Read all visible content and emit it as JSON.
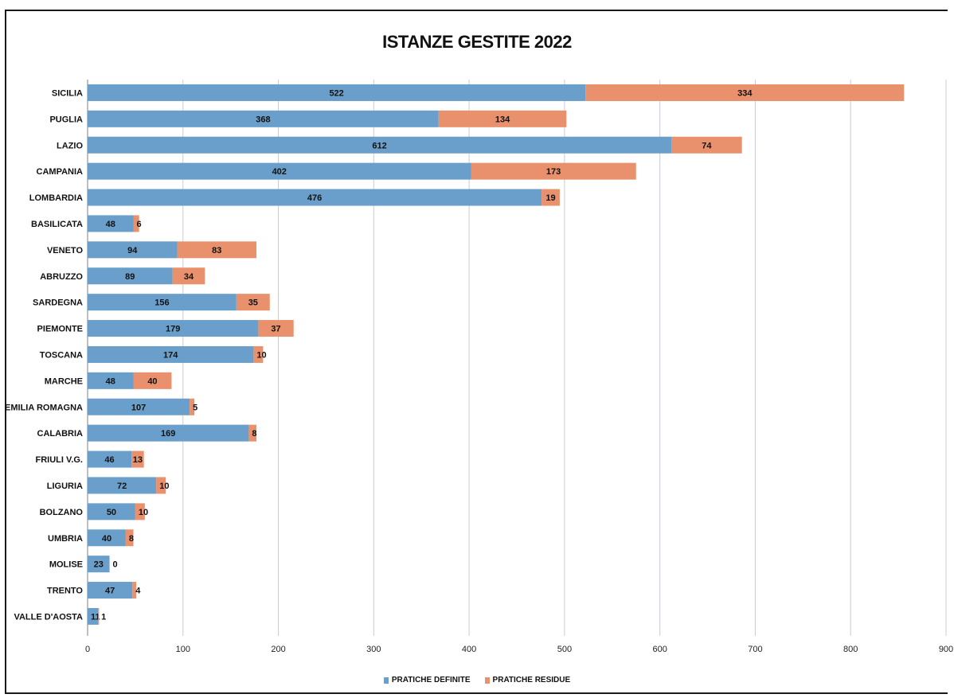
{
  "chart_data": {
    "type": "bar",
    "orientation": "horizontal",
    "stacked": true,
    "title": "ISTANZE GESTITE 2022",
    "categories": [
      "SICILIA",
      "PUGLIA",
      "LAZIO",
      "CAMPANIA",
      "LOMBARDIA",
      "BASILICATA",
      "VENETO",
      "ABRUZZO",
      "SARDEGNA",
      "PIEMONTE",
      "TOSCANA",
      "MARCHE",
      "EMILIA ROMAGNA",
      "CALABRIA",
      "FRIULI V.G.",
      "LIGURIA",
      "BOLZANO",
      "UMBRIA",
      "MOLISE",
      "TRENTO",
      "VALLE D'AOSTA"
    ],
    "series": [
      {
        "name": "PRATICHE DEFINITE",
        "color": "#6a9fcb",
        "values": [
          522,
          368,
          612,
          402,
          476,
          48,
          94,
          89,
          156,
          179,
          174,
          48,
          107,
          169,
          46,
          72,
          50,
          40,
          23,
          47,
          11
        ]
      },
      {
        "name": "PRATICHE RESIDUE",
        "color": "#e8916c",
        "values": [
          334,
          134,
          74,
          173,
          19,
          6,
          83,
          34,
          35,
          37,
          10,
          40,
          5,
          8,
          13,
          10,
          10,
          8,
          0,
          4,
          1
        ]
      }
    ],
    "xlim": [
      0,
      900
    ],
    "xticks": [
      0,
      100,
      200,
      300,
      400,
      500,
      600,
      700,
      800,
      900
    ],
    "grid": true,
    "legend_position": "bottom"
  }
}
